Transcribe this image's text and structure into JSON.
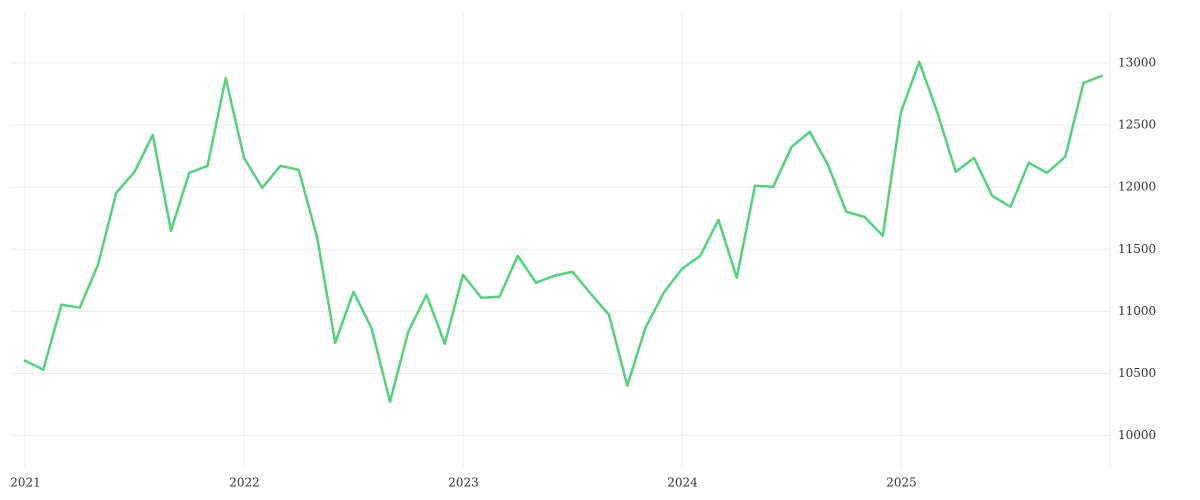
{
  "chart_data": {
    "type": "line",
    "categories": [
      "2021",
      null,
      null,
      null,
      null,
      null,
      null,
      null,
      null,
      null,
      null,
      null,
      "2022",
      null,
      null,
      null,
      null,
      null,
      null,
      null,
      null,
      null,
      null,
      null,
      "2023",
      null,
      null,
      null,
      null,
      null,
      null,
      null,
      null,
      null,
      null,
      null,
      "2024",
      null,
      null,
      null,
      null,
      null,
      null,
      null,
      null,
      null,
      null,
      null,
      "2025",
      null,
      null,
      null,
      null,
      null,
      null,
      null,
      null,
      null,
      null,
      null
    ],
    "values": [
      10603,
      10531,
      11054,
      11030,
      11375,
      11955,
      12123,
      12421,
      11649,
      12115,
      12172,
      12879,
      12236,
      11995,
      12172,
      12139,
      11600,
      10748,
      11158,
      10861,
      10273,
      10836,
      11134,
      10740,
      11295,
      11110,
      11118,
      11448,
      11231,
      11287,
      11319,
      11142,
      10973,
      10402,
      10869,
      11150,
      11343,
      11448,
      11737,
      11271,
      12011,
      12003,
      12324,
      12445,
      12180,
      11802,
      11761,
      11609,
      12606,
      13008,
      12598,
      12123,
      12236,
      11930,
      11842,
      12196,
      12115,
      12244,
      12839,
      12896
    ],
    "color": "#52d27f",
    "ylim": [
      9820,
      13410
    ],
    "yticks": [
      10000,
      10500,
      11000,
      11500,
      12000,
      12500,
      13000
    ],
    "grid": true
  }
}
